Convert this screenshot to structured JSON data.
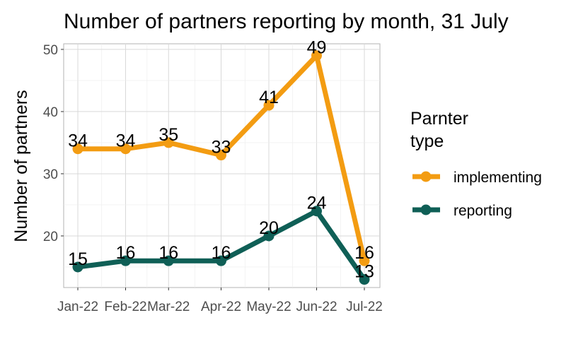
{
  "chart_data": {
    "type": "line",
    "title": "Number of partners reporting by month, 31 July",
    "xlabel": "",
    "ylabel": "Number of partners",
    "categories": [
      "Jan-22",
      "Feb-22",
      "Mar-22",
      "Apr-22",
      "May-22",
      "Jun-22",
      "Jul-22"
    ],
    "x_positions": [
      0,
      1,
      1.9,
      3,
      4,
      5,
      6
    ],
    "ylim": [
      11.7,
      50.9
    ],
    "yticks": [
      20,
      30,
      40,
      50
    ],
    "grid": true,
    "legend": {
      "title_lines": [
        "Parnter",
        "type"
      ],
      "position": "right"
    },
    "series": [
      {
        "name": "implementing",
        "color": "#f39c12",
        "values": [
          34,
          34,
          35,
          33,
          41,
          49,
          16
        ]
      },
      {
        "name": "reporting",
        "color": "#0f5f56",
        "values": [
          15,
          16,
          16,
          16,
          20,
          24,
          13
        ]
      }
    ]
  }
}
